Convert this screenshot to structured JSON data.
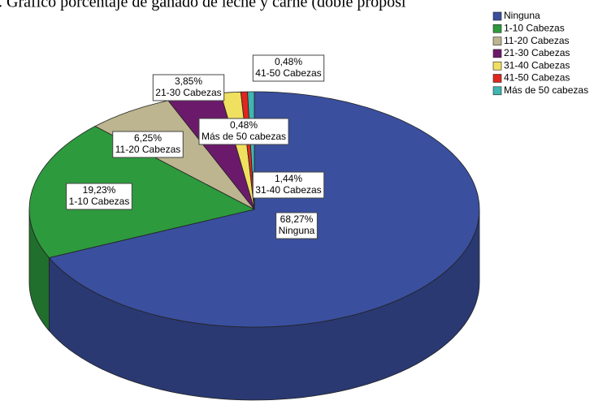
{
  "chart_data": {
    "type": "pie",
    "title": ". Gráfico porcentaje de ganado de leche y carne (doble proposi",
    "categories": [
      "Ninguna",
      "1-10 Cabezas",
      "11-20 Cabezas",
      "21-30 Cabezas",
      "31-40 Cabezas",
      "41-50 Cabezas",
      "Más de 50 cabezas"
    ],
    "values": [
      68.27,
      19.23,
      6.25,
      3.85,
      1.44,
      0.48,
      0.48
    ],
    "value_labels": [
      "68,27%",
      "19,23%",
      "6,25%",
      "3,85%",
      "1,44%",
      "0,48%",
      "0,48%"
    ],
    "colors": [
      "#3a4f9e",
      "#2e9a3e",
      "#bdb58f",
      "#6b1a6b",
      "#f0e060",
      "#e0261e",
      "#3fb6b0"
    ],
    "legend": "top-right"
  }
}
